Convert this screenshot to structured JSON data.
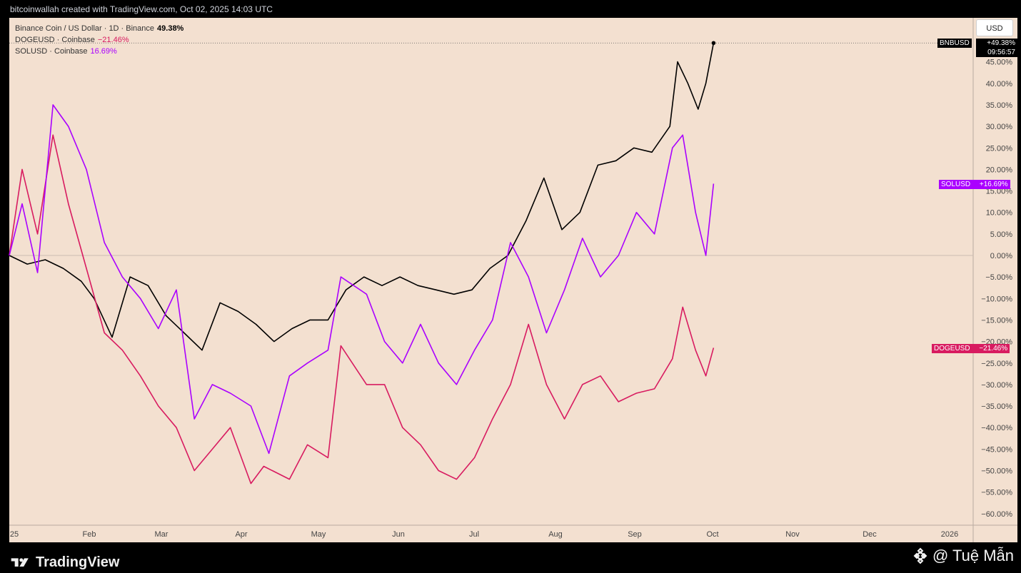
{
  "header": {
    "attribution": "bitcoinwallah created with TradingView.com, Oct 02, 2025 14:03 UTC"
  },
  "legend": {
    "items": [
      {
        "name": "Binance Coin / US Dollar · 1D · Binance",
        "value": "49.38%",
        "color": "#000000"
      },
      {
        "name": "DOGEUSD · Coinbase",
        "value": "−21.46%",
        "color": "#d81b60"
      },
      {
        "name": "SOLUSD · Coinbase",
        "value": "16.69%",
        "color": "#aa00ff"
      }
    ]
  },
  "currency_button": "USD",
  "badges": {
    "bnb": {
      "label": "BNBUSD",
      "value": "+49.38%",
      "time": "09:56:57"
    },
    "sol": {
      "label": "SOLUSD",
      "value": "+16.69%"
    },
    "doge": {
      "label": "DOGEUSD",
      "value": "−21.46%"
    }
  },
  "footer": {
    "brand": "TradingView",
    "credit": "@ Tuệ Mẫn"
  },
  "colors": {
    "plot_bg": "#f3e0d0",
    "bnb": "#000000",
    "doge": "#d81b60",
    "sol": "#aa00ff",
    "axis_bg": "#f3e0d0"
  },
  "chart_data": {
    "type": "line",
    "y_unit": "%",
    "ylim": [
      -62,
      55
    ],
    "x_ticks": [
      "25",
      "Feb",
      "Mar",
      "Apr",
      "May",
      "Jun",
      "Jul",
      "Aug",
      "Sep",
      "Oct",
      "Nov",
      "Dec",
      "2026"
    ],
    "y_ticks": [
      45,
      40,
      35,
      30,
      25,
      20,
      15,
      10,
      5,
      0,
      -5,
      -10,
      -15,
      -20,
      -25,
      -30,
      -35,
      -40,
      -45,
      -50,
      -55,
      -60
    ],
    "series": [
      {
        "name": "BNBUSD",
        "color": "#000000",
        "x": [
          "2025-01-01",
          "2025-01-08",
          "2025-01-15",
          "2025-01-22",
          "2025-01-29",
          "2025-02-03",
          "2025-02-10",
          "2025-02-17",
          "2025-02-24",
          "2025-03-03",
          "2025-03-10",
          "2025-03-17",
          "2025-03-24",
          "2025-03-31",
          "2025-04-07",
          "2025-04-14",
          "2025-04-21",
          "2025-04-28",
          "2025-05-05",
          "2025-05-12",
          "2025-05-19",
          "2025-05-26",
          "2025-06-02",
          "2025-06-09",
          "2025-06-16",
          "2025-06-23",
          "2025-06-30",
          "2025-07-07",
          "2025-07-14",
          "2025-07-21",
          "2025-07-28",
          "2025-08-04",
          "2025-08-11",
          "2025-08-18",
          "2025-08-25",
          "2025-09-01",
          "2025-09-08",
          "2025-09-15",
          "2025-09-18",
          "2025-09-22",
          "2025-09-26",
          "2025-09-29",
          "2025-10-02"
        ],
        "values": [
          0,
          -2,
          -1,
          -3,
          -6,
          -10,
          -19,
          -5,
          -7,
          -14,
          -18,
          -22,
          -11,
          -13,
          -16,
          -20,
          -17,
          -15,
          -15,
          -8,
          -5,
          -7,
          -5,
          -7,
          -8,
          -9,
          -8,
          -3,
          0,
          8,
          18,
          6,
          10,
          21,
          22,
          25,
          24,
          30,
          45,
          40,
          34,
          40,
          49.38
        ]
      },
      {
        "name": "DOGEUSD",
        "color": "#d81b60",
        "x": [
          "2025-01-01",
          "2025-01-06",
          "2025-01-12",
          "2025-01-18",
          "2025-01-24",
          "2025-01-31",
          "2025-02-07",
          "2025-02-14",
          "2025-02-21",
          "2025-02-28",
          "2025-03-07",
          "2025-03-14",
          "2025-03-21",
          "2025-03-28",
          "2025-04-05",
          "2025-04-10",
          "2025-04-20",
          "2025-04-27",
          "2025-05-05",
          "2025-05-10",
          "2025-05-20",
          "2025-05-27",
          "2025-06-03",
          "2025-06-10",
          "2025-06-17",
          "2025-06-24",
          "2025-07-01",
          "2025-07-08",
          "2025-07-15",
          "2025-07-22",
          "2025-07-29",
          "2025-08-05",
          "2025-08-12",
          "2025-08-19",
          "2025-08-26",
          "2025-09-02",
          "2025-09-09",
          "2025-09-16",
          "2025-09-20",
          "2025-09-25",
          "2025-09-29",
          "2025-10-02"
        ],
        "values": [
          0,
          20,
          5,
          28,
          12,
          -3,
          -18,
          -22,
          -28,
          -35,
          -40,
          -50,
          -45,
          -40,
          -53,
          -49,
          -52,
          -44,
          -47,
          -21,
          -30,
          -30,
          -40,
          -44,
          -50,
          -52,
          -47,
          -38,
          -30,
          -16,
          -30,
          -38,
          -30,
          -28,
          -34,
          -32,
          -31,
          -24,
          -12,
          -22,
          -28,
          -21.46
        ]
      },
      {
        "name": "SOLUSD",
        "color": "#aa00ff",
        "x": [
          "2025-01-01",
          "2025-01-06",
          "2025-01-12",
          "2025-01-18",
          "2025-01-24",
          "2025-01-31",
          "2025-02-07",
          "2025-02-14",
          "2025-02-21",
          "2025-02-28",
          "2025-03-07",
          "2025-03-14",
          "2025-03-21",
          "2025-03-28",
          "2025-04-05",
          "2025-04-12",
          "2025-04-20",
          "2025-04-27",
          "2025-05-05",
          "2025-05-10",
          "2025-05-20",
          "2025-05-27",
          "2025-06-03",
          "2025-06-10",
          "2025-06-17",
          "2025-06-24",
          "2025-07-01",
          "2025-07-08",
          "2025-07-15",
          "2025-07-22",
          "2025-07-29",
          "2025-08-05",
          "2025-08-12",
          "2025-08-19",
          "2025-08-26",
          "2025-09-02",
          "2025-09-09",
          "2025-09-16",
          "2025-09-20",
          "2025-09-25",
          "2025-09-29",
          "2025-10-02"
        ],
        "values": [
          0,
          12,
          -4,
          35,
          30,
          20,
          3,
          -5,
          -10,
          -17,
          -8,
          -38,
          -30,
          -32,
          -35,
          -46,
          -28,
          -25,
          -22,
          -5,
          -9,
          -20,
          -25,
          -16,
          -25,
          -30,
          -22,
          -15,
          3,
          -5,
          -18,
          -8,
          4,
          -5,
          0,
          10,
          5,
          25,
          28,
          10,
          0,
          16.69
        ]
      }
    ]
  }
}
